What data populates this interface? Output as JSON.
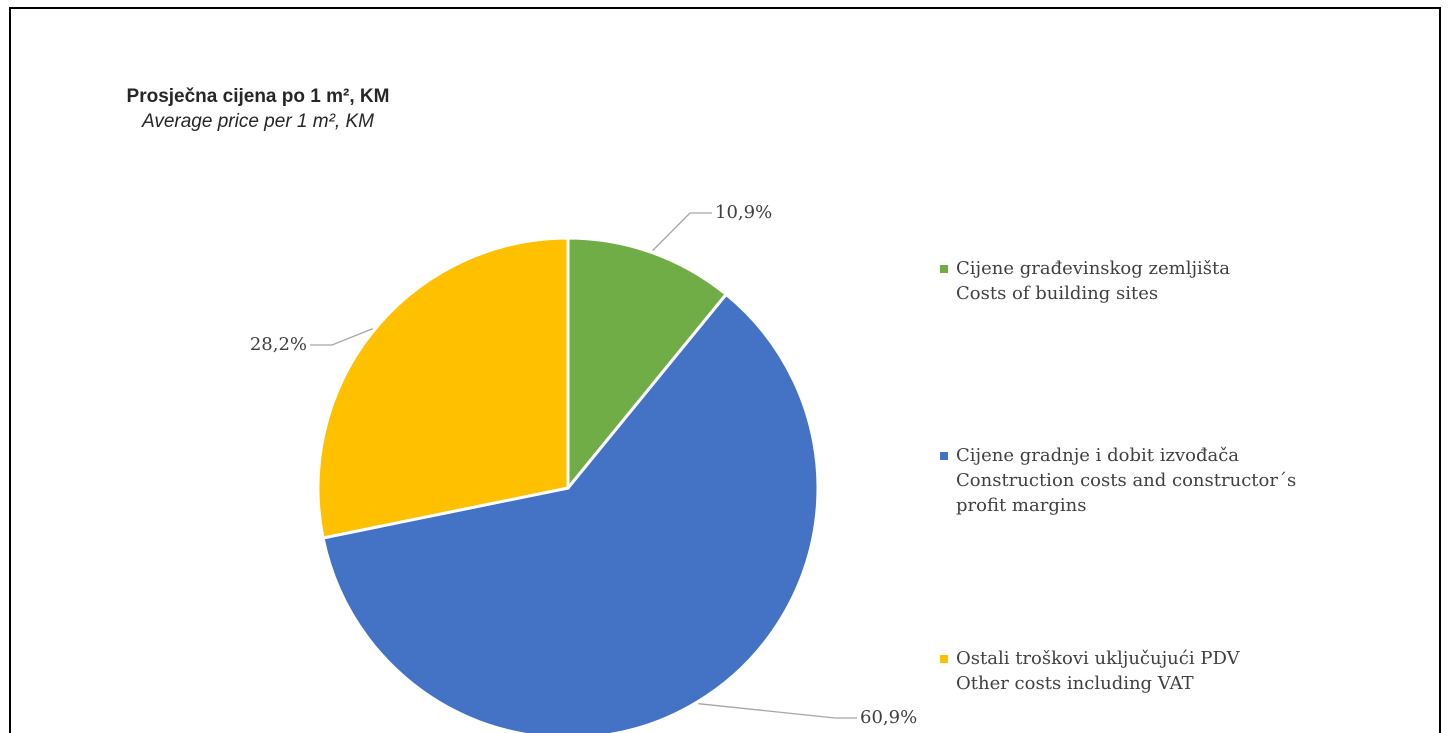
{
  "chart_data": {
    "type": "pie",
    "title": "Prosječna cijena po 1 m², KM",
    "subtitle": "Average price per 1 m², KM",
    "categories": [
      [
        "Cijene građevinskog zemljišta",
        "Costs of building sites"
      ],
      [
        "Cijene gradnje i dobit izvođača",
        "Construction costs and constructor´s profit margins"
      ],
      [
        "Ostali troškovi uključujući PDV",
        "Other costs including VAT"
      ]
    ],
    "values": [
      10.9,
      60.9,
      28.2
    ],
    "value_labels": [
      "10,9%",
      "60,9%",
      "28,2%"
    ],
    "colors": [
      "#70ad47",
      "#4472c4",
      "#ffc000"
    ],
    "legend": "right"
  }
}
